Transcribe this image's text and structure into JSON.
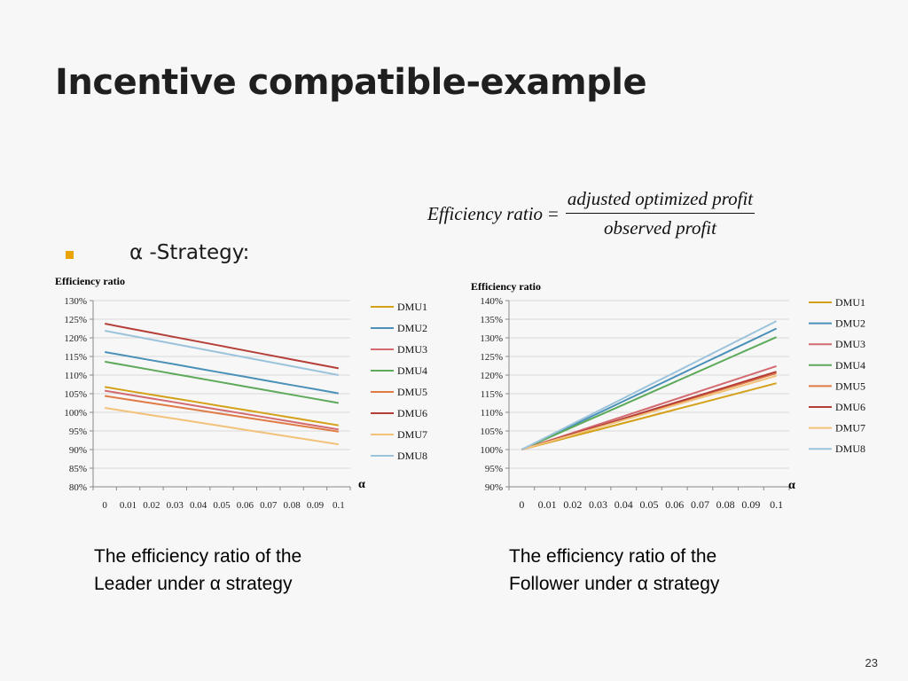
{
  "title": "Incentive compatible-example",
  "formula": {
    "lhs": "Efficiency ratio",
    "eq": "=",
    "numerator": "adjusted optimized profit",
    "denominator": "observed profit"
  },
  "bullet": "α  -Strategy:",
  "captions": {
    "leader_line1": "The efficiency ratio of the",
    "leader_line2": "Leader under α  strategy",
    "follower_line1": "The efficiency ratio of the",
    "follower_line2": "Follower under α strategy"
  },
  "page_number": "23",
  "colors": {
    "DMU1": "#d4a017",
    "DMU2": "#4a90b8",
    "DMU3": "#d36a70",
    "DMU4": "#5daa5a",
    "DMU5": "#e07b45",
    "DMU6": "#b53f38",
    "DMU7": "#f2c27a",
    "DMU8": "#9cc3dc"
  },
  "chart_data": [
    {
      "type": "line",
      "ylabel": "Efficiency ratio",
      "xlabel": "α",
      "x": [
        "0",
        "0.01",
        "0.02",
        "0.03",
        "0.04",
        "0.05",
        "0.06",
        "0.07",
        "0.08",
        "0.09",
        "0.1"
      ],
      "y_ticks": [
        "80%",
        "85%",
        "90%",
        "95%",
        "100%",
        "105%",
        "110%",
        "115%",
        "120%",
        "125%",
        "130%"
      ],
      "ylim": [
        80,
        130
      ],
      "legend": "right",
      "grid": true,
      "series": [
        {
          "name": "DMU1",
          "start": 106.8,
          "end": 96.5
        },
        {
          "name": "DMU2",
          "start": 116.2,
          "end": 105.1
        },
        {
          "name": "DMU3",
          "start": 105.8,
          "end": 95.4
        },
        {
          "name": "DMU4",
          "start": 113.6,
          "end": 102.5
        },
        {
          "name": "DMU5",
          "start": 104.4,
          "end": 94.8
        },
        {
          "name": "DMU6",
          "start": 123.8,
          "end": 111.8
        },
        {
          "name": "DMU7",
          "start": 101.2,
          "end": 91.4
        },
        {
          "name": "DMU8",
          "start": 121.9,
          "end": 110.0
        }
      ]
    },
    {
      "type": "line",
      "ylabel": "Efficiency ratio",
      "xlabel": "α",
      "x": [
        "0",
        "0.01",
        "0.02",
        "0.03",
        "0.04",
        "0.05",
        "0.06",
        "0.07",
        "0.08",
        "0.09",
        "0.1"
      ],
      "y_ticks": [
        "90%",
        "95%",
        "100%",
        "105%",
        "110%",
        "115%",
        "120%",
        "125%",
        "130%",
        "135%",
        "140%"
      ],
      "ylim": [
        90,
        140
      ],
      "legend": "right",
      "grid": true,
      "series": [
        {
          "name": "DMU1",
          "start": 100,
          "end": 117.8
        },
        {
          "name": "DMU2",
          "start": 100,
          "end": 132.5
        },
        {
          "name": "DMU3",
          "start": 100,
          "end": 122.4
        },
        {
          "name": "DMU4",
          "start": 100,
          "end": 130.2
        },
        {
          "name": "DMU5",
          "start": 100,
          "end": 120.5
        },
        {
          "name": "DMU6",
          "start": 100,
          "end": 120.9
        },
        {
          "name": "DMU7",
          "start": 100,
          "end": 119.8
        },
        {
          "name": "DMU8",
          "start": 100,
          "end": 134.5
        }
      ]
    }
  ]
}
